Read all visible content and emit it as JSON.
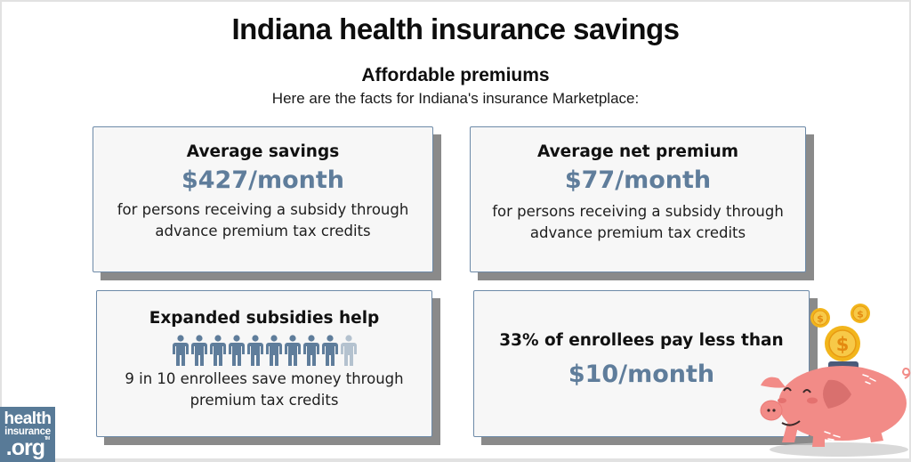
{
  "header": {
    "title": "Indiana health insurance savings",
    "subtitle": "Affordable premiums",
    "intro": "Here are the facts for Indiana's insurance Marketplace:"
  },
  "cards": [
    {
      "title": "Average savings",
      "value": "$427/month",
      "desc_line1": "for persons receiving a subsidy through",
      "desc_line2": "advance premium tax credits"
    },
    {
      "title": "Average net premium",
      "value": "$77/month",
      "desc_line1": "for persons receiving a subsidy through",
      "desc_line2": "advance premium tax credits"
    },
    {
      "title": "Expanded subsidies help",
      "people_icons": {
        "filled": 9,
        "total": 10,
        "filled_color": "#5f7d9b",
        "empty_color": "#b4c2cf"
      },
      "desc_line1": "9 in 10 enrollees save money through",
      "desc_line2": "premium tax credits"
    },
    {
      "title": "33% of enrollees pay less than",
      "value": "$10/month"
    }
  ],
  "logo": {
    "line1": "health",
    "line2": "insurance",
    "line3": ".org",
    "tm": "TM"
  },
  "colors": {
    "accent": "#5f7d9b",
    "card_border": "#6d8aa8",
    "card_bg": "#f7f7f7",
    "shadow": "#8a8a8a",
    "logo_bg": "#587a97",
    "pig": "#f28b87",
    "coin": "#f2b51c"
  },
  "illustration": "piggy-bank-with-coins"
}
